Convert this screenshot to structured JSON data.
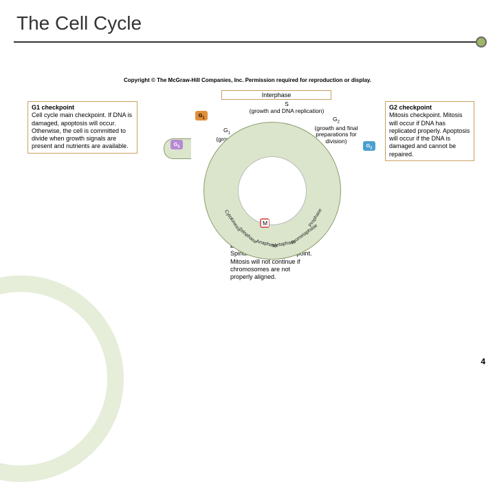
{
  "title": "The Cell Cycle",
  "copyright": "Copyright © The McGraw-Hill Companies, Inc. Permission required for reproduction or display.",
  "interphase_label": "Interphase",
  "badges": {
    "g0": "G0",
    "g1": "G1",
    "g2": "G2",
    "m": "M"
  },
  "captions": {
    "s": "S\n(growth and DNA replication)",
    "g1": "G1\n(growth)",
    "g2": "G2\n(growth and final preparations for division)",
    "m": "M",
    "m2": "M"
  },
  "checkpoints": {
    "g1": "G1 checkpoint\nCell cycle main checkpoint. If DNA is damaged, apoptosis will occur. Otherwise, the cell is committed to divide when growth signals are present and nutrients are available.",
    "g2": "G2 checkpoint\nMitosis checkpoint. Mitosis will occur if DNA has replicated properly. Apoptosis will occur if the DNA is damaged and cannot be repaired.",
    "m": "M checkpoint\nSpindle assembly checkpoint. Mitosis will not continue if chromosomes are not properly aligned."
  },
  "phases_ring": [
    "Cytokinesis",
    "Telophase",
    "Anaphase",
    "Metaphase",
    "Prometaphase",
    "Prophase"
  ],
  "colors": {
    "accent_ring": "#dbe5cc",
    "accent_dot": "#9db668",
    "box_border": "#c8a060",
    "badge_g0": "#b78ad4",
    "badge_g1": "#e28f3a",
    "badge_g2": "#4aa0d0",
    "badge_m": "#d66a6a"
  },
  "page_number": "4"
}
